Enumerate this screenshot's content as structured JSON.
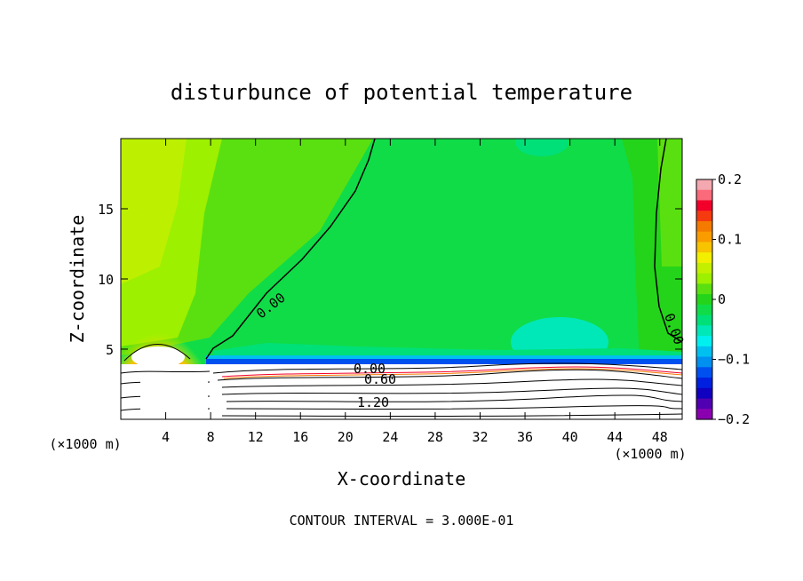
{
  "chart_data": {
    "type": "contour",
    "title": "disturbunce of potential temperature",
    "xlabel": "X-coordinate",
    "ylabel": "Z-coordinate",
    "x_unit": "(×1000 m)",
    "x_unit_right": "(×1000 m)",
    "xlim": [
      0,
      50
    ],
    "ylim": [
      0,
      20
    ],
    "xticks": [
      "4",
      "8",
      "12",
      "16",
      "20",
      "24",
      "28",
      "32",
      "36",
      "40",
      "44",
      "48"
    ],
    "xtick_values": [
      4,
      8,
      12,
      16,
      20,
      24,
      28,
      32,
      36,
      40,
      44,
      48
    ],
    "yticks": [
      "5",
      "10",
      "15"
    ],
    "ytick_values": [
      5,
      10,
      15
    ],
    "colorbar": {
      "range": [
        -0.2,
        0.2
      ],
      "tick_labels": [
        "0.2",
        "0.1",
        "0",
        "−0.1",
        "−0.2"
      ],
      "tick_values": [
        0.2,
        0.1,
        0,
        -0.1,
        -0.2
      ],
      "colors": [
        "#f4a8b0",
        "#fa6a7a",
        "#f2002a",
        "#f53a10",
        "#f47a00",
        "#fa9c00",
        "#f8c400",
        "#f2f000",
        "#c4f000",
        "#9cf000",
        "#5ae010",
        "#24d41a",
        "#10dc48",
        "#00e078",
        "#00e8b8",
        "#00f0f0",
        "#00c0f0",
        "#0090f0",
        "#0050f0",
        "#0020e0",
        "#1000c0",
        "#5000b0",
        "#8a00b0"
      ]
    },
    "contour_labels": [
      {
        "text": "0.00",
        "x": 20.0,
        "z": 8.1
      },
      {
        "text": "0.00",
        "x": 48.5,
        "z": 6.2
      },
      {
        "text": "0.00",
        "x": 22.0,
        "z": 3.6
      },
      {
        "text": "0.60",
        "x": 23.0,
        "z": 2.8
      },
      {
        "text": "1.20",
        "x": 22.0,
        "z": 1.2
      }
    ],
    "contour_interval": "CONTOUR INTERVAL = 3.000E-01"
  }
}
